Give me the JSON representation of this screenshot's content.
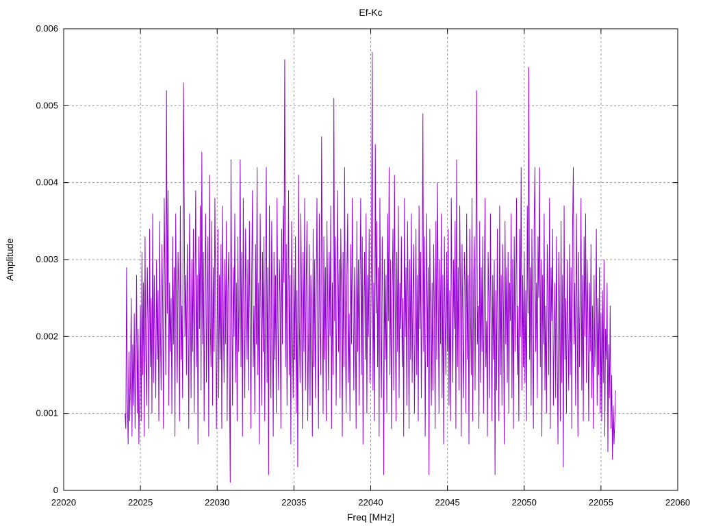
{
  "chart": {
    "title": "Ef-Kc",
    "xlabel": "Freq [MHz]",
    "ylabel": "Amplitude"
  },
  "chart_data": {
    "type": "line",
    "title": "Ef-Kc",
    "xlabel": "Freq [MHz]",
    "ylabel": "Amplitude",
    "xlim": [
      22020,
      22060
    ],
    "ylim": [
      0,
      0.006
    ],
    "x_ticks": [
      22020,
      22025,
      22030,
      22035,
      22040,
      22045,
      22050,
      22055,
      22060
    ],
    "x_tick_labels": [
      "22020",
      "22025",
      "22030",
      "22035",
      "22040",
      "22045",
      "22050",
      "22055",
      "22060"
    ],
    "y_ticks": [
      0,
      0.001,
      0.002,
      0.003,
      0.004,
      0.005,
      0.006
    ],
    "y_tick_labels": [
      "0",
      "0.001",
      "0.002",
      "0.003",
      "0.004",
      "0.005",
      "0.006"
    ],
    "grid": true,
    "grid_style": "dashed",
    "legend": "none",
    "line_color": "#9400d3",
    "grid_color": "#9a9a9a",
    "border_color": "#000000",
    "series": [
      {
        "name": "Ef-Kc",
        "x_start": 22024.0,
        "x_step": 0.05,
        "value_scale": 0.0001,
        "values": [
          10,
          8,
          29,
          12,
          6,
          18,
          9,
          14,
          25,
          7,
          19,
          11,
          23,
          8,
          16,
          28,
          10,
          21,
          6,
          13,
          24,
          9,
          31,
          15,
          27,
          7,
          33,
          18,
          11,
          29,
          22,
          8,
          34,
          16,
          25,
          10,
          36,
          14,
          28,
          19,
          12,
          30,
          17,
          26,
          9,
          35,
          21,
          13,
          32,
          24,
          8,
          38,
          28,
          15,
          52,
          23,
          39,
          11,
          27,
          18,
          25,
          10,
          33,
          19,
          29,
          7,
          36,
          22,
          14,
          31,
          26,
          9,
          37,
          17,
          24,
          12,
          53,
          38,
          20,
          28,
          15,
          32,
          23,
          8,
          36,
          27,
          12,
          30,
          18,
          34,
          10,
          25,
          39,
          16,
          28,
          6,
          33,
          21,
          37,
          13,
          44,
          19,
          31,
          9,
          27,
          36,
          14,
          24,
          33,
          7,
          41,
          22,
          16,
          35,
          11,
          29,
          18,
          38,
          25,
          8,
          21,
          34,
          12,
          28,
          17,
          32,
          8,
          37,
          23,
          14,
          30,
          19,
          35,
          9,
          26,
          31,
          15,
          1,
          43,
          24,
          11,
          29,
          20,
          36,
          14,
          27,
          9,
          33,
          18,
          25,
          43,
          16,
          31,
          7,
          38,
          22,
          12,
          34,
          26,
          17,
          30,
          13,
          35,
          21,
          8,
          28,
          39,
          16,
          24,
          10,
          32,
          19,
          42,
          15,
          27,
          6,
          36,
          23,
          11,
          31,
          18,
          33,
          9,
          26,
          42,
          14,
          29,
          2,
          37,
          20,
          12,
          35,
          24,
          7,
          31,
          17,
          28,
          10,
          38,
          22,
          13,
          30,
          25,
          8,
          34,
          19,
          37,
          27,
          56,
          16,
          32,
          11,
          23,
          39,
          15,
          28,
          6,
          35,
          21,
          12,
          29,
          17,
          33,
          10,
          26,
          3,
          41,
          22,
          14,
          36,
          24,
          8,
          31,
          18,
          38,
          13,
          27,
          35,
          9,
          20,
          32,
          11,
          28,
          23,
          7,
          34,
          16,
          30,
          12,
          25,
          38,
          19,
          8,
          36,
          21,
          15,
          46,
          26,
          10,
          33,
          17,
          29,
          9,
          35,
          24,
          13,
          31,
          20,
          37,
          8,
          27,
          15,
          51,
          22,
          33,
          11,
          26,
          39,
          18,
          30,
          12,
          34,
          25,
          7,
          31,
          16,
          42,
          21,
          10,
          28,
          36,
          14,
          23,
          9,
          32,
          19,
          38,
          26,
          13,
          29,
          22,
          8,
          35,
          18,
          30,
          11,
          27,
          38,
          15,
          33,
          6,
          24,
          31,
          17,
          36,
          10,
          28,
          20,
          34,
          14,
          19,
          31,
          57,
          13,
          27,
          9,
          45,
          23,
          35,
          16,
          29,
          7,
          38,
          21,
          12,
          33,
          25,
          2,
          30,
          17,
          28,
          10,
          36,
          22,
          42,
          15,
          30,
          8,
          26,
          34,
          13,
          41,
          24,
          9,
          31,
          18,
          37,
          12,
          27,
          21,
          33,
          16,
          25,
          7,
          38,
          20,
          29,
          11,
          35,
          23,
          8,
          30,
          17,
          36,
          14,
          26,
          32,
          10,
          22,
          34,
          15,
          28,
          9,
          37,
          21,
          31,
          12,
          26,
          49,
          18,
          33,
          7,
          24,
          36,
          16,
          29,
          2,
          34,
          20,
          11,
          27,
          13,
          32,
          23,
          8,
          35,
          17,
          40,
          25,
          10,
          30,
          19,
          36,
          12,
          28,
          6,
          33,
          22,
          15,
          31,
          18,
          34,
          11,
          26,
          9,
          38,
          24,
          14,
          30,
          21,
          35,
          8,
          43,
          16,
          29,
          13,
          37,
          25,
          7,
          32,
          20,
          12,
          31,
          27,
          10,
          36,
          17,
          28,
          6,
          34,
          23,
          15,
          38,
          9,
          26,
          33,
          13,
          30,
          52,
          19,
          24,
          8,
          35,
          14,
          29,
          18,
          33,
          10,
          27,
          38,
          16,
          22,
          7,
          31,
          25,
          12,
          36,
          20,
          9,
          28,
          17,
          30,
          2,
          26,
          13,
          34,
          21,
          9,
          37,
          15,
          28,
          11,
          32,
          23,
          6,
          35,
          19,
          29,
          14,
          31,
          10,
          27,
          22,
          36,
          12,
          30,
          8,
          33,
          18,
          25,
          38,
          15,
          24,
          9,
          34,
          20,
          42,
          13,
          28,
          16,
          31,
          14,
          26,
          9,
          37,
          23,
          55,
          17,
          29,
          11,
          34,
          21,
          8,
          35,
          42,
          18,
          27,
          12,
          33,
          25,
          42,
          16,
          30,
          7,
          28,
          19,
          36,
          13,
          24,
          10,
          32,
          26,
          15,
          38,
          8,
          29,
          22,
          34,
          11,
          20,
          27,
          12,
          33,
          18,
          6,
          31,
          24,
          9,
          35,
          14,
          28,
          3,
          37,
          17,
          25,
          10,
          30,
          21,
          13,
          32,
          15,
          29,
          8,
          34,
          42,
          19,
          27,
          11,
          36,
          23,
          7,
          31,
          16,
          25,
          38,
          13,
          28,
          9,
          33,
          20,
          36,
          14,
          30,
          22,
          9,
          27,
          18,
          32,
          12,
          24,
          8,
          28,
          16,
          21,
          34,
          11,
          25,
          15,
          29,
          10,
          23,
          9,
          26,
          14,
          30,
          7,
          21,
          17,
          27,
          5,
          19,
          12,
          24,
          8,
          15,
          4,
          11,
          6,
          9,
          13
        ]
      }
    ]
  }
}
